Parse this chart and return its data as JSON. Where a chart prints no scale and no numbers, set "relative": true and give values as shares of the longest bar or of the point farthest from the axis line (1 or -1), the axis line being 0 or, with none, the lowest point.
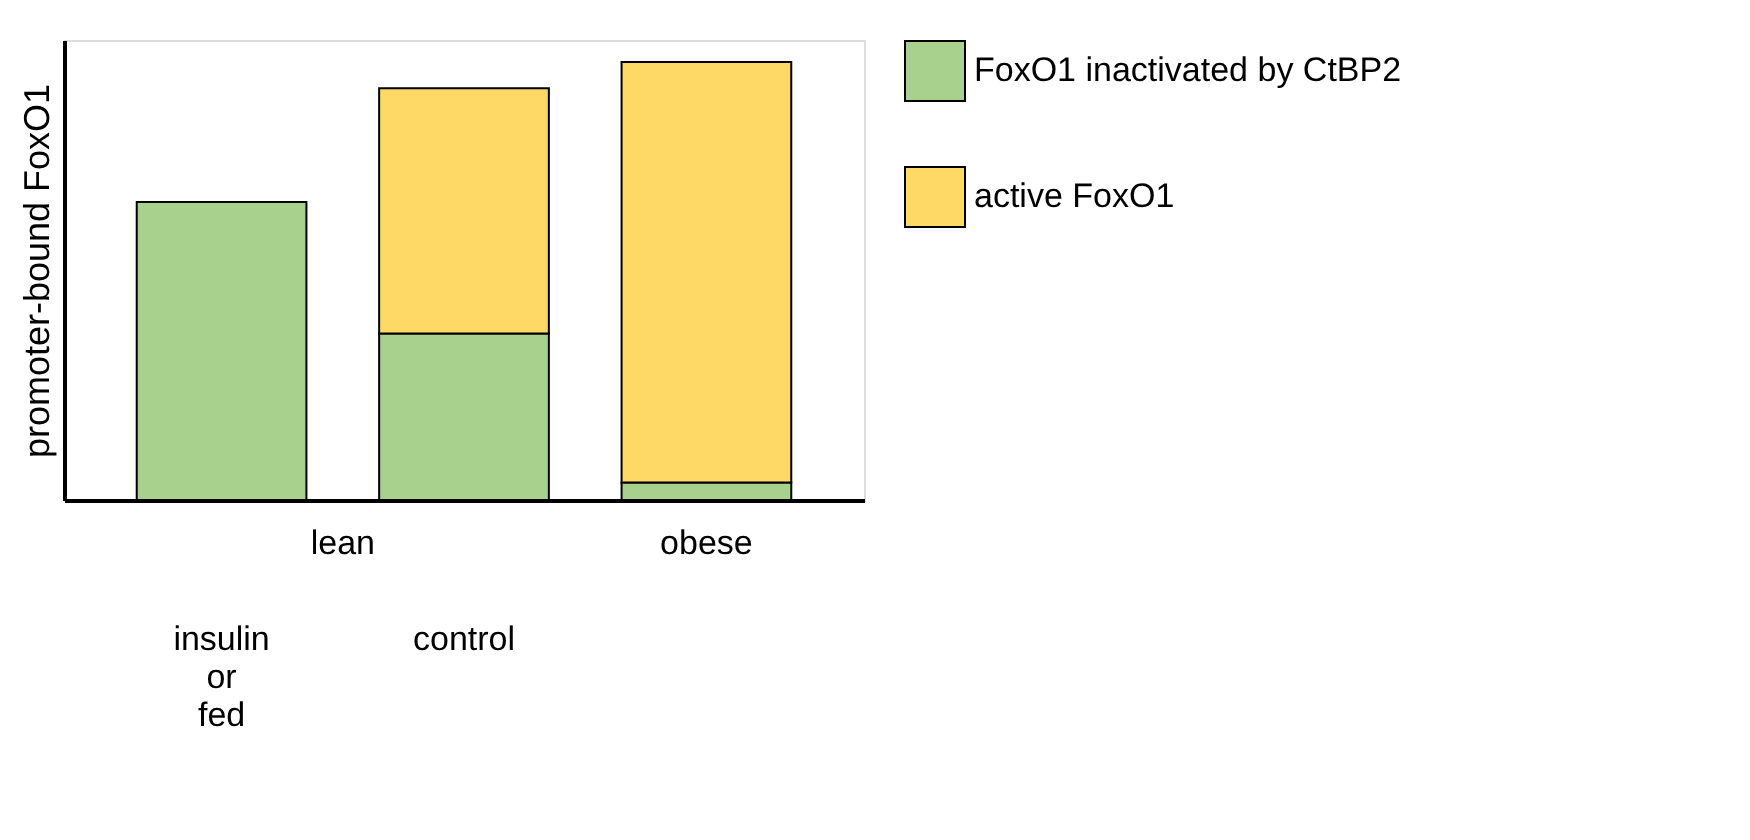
{
  "chart_data": {
    "type": "bar",
    "stacked": true,
    "relative": true,
    "ylabel": "promoter-bound FoxO1",
    "categories": [
      "insulin or fed",
      "control",
      "obese"
    ],
    "series": [
      {
        "name": "FoxO1 inactivated by CtBP2",
        "color": "#a9d18e",
        "values": [
          0.68,
          0.38,
          0.04
        ]
      },
      {
        "name": "active FoxO1",
        "color": "#ffd966",
        "values": [
          null,
          0.56,
          0.96
        ]
      }
    ],
    "annotations": [
      "lean"
    ],
    "legend": "right",
    "grid": false
  }
}
